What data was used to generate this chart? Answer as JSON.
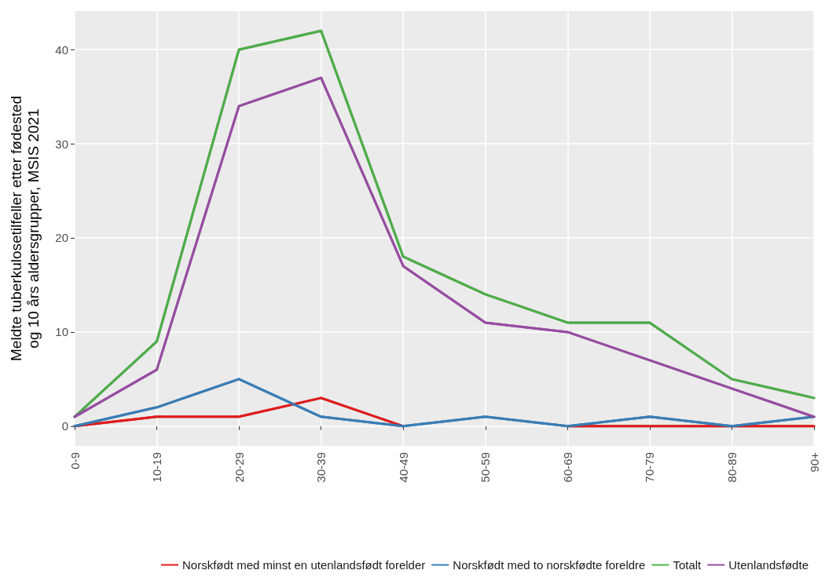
{
  "chart_data": {
    "type": "line",
    "ylabel": "Meldte tuberkulosetilfeller etter fødested\nog 10 års aldersgrupper, MSIS 2021",
    "categories": [
      "0-9",
      "10-19",
      "20-29",
      "30-39",
      "40-49",
      "50-59",
      "60-69",
      "70-79",
      "80-89",
      "90+"
    ],
    "series": [
      {
        "name": "Norskfødt med minst en utenlandsfødt forelder",
        "color": "#e41a1c",
        "values": [
          0,
          1,
          1,
          3,
          0,
          null,
          0,
          0,
          0,
          0
        ]
      },
      {
        "name": "Norskfødt med to norskfødte foreldre",
        "color": "#377eb8",
        "values": [
          0,
          2,
          5,
          1,
          0,
          1,
          0,
          1,
          0,
          1
        ]
      },
      {
        "name": "Totalt",
        "color": "#4daf4a",
        "values": [
          1,
          9,
          40,
          42,
          18,
          14,
          11,
          11,
          5,
          3
        ]
      },
      {
        "name": "Utenlandsfødte",
        "color": "#984ea3",
        "values": [
          1,
          6,
          34,
          37,
          17,
          11,
          10,
          7,
          4,
          1
        ]
      }
    ],
    "ylim": [
      -2.1,
      44.1
    ],
    "yticks": [
      0,
      10,
      20,
      30,
      40
    ],
    "grid": true,
    "legend": "bottom",
    "marker": "none",
    "line_style": "solid"
  }
}
